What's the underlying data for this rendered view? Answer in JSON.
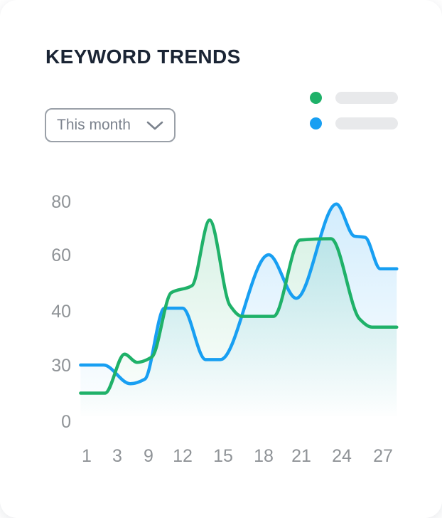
{
  "card": {
    "title": "KEYWORD TRENDS"
  },
  "filter": {
    "value": "This month",
    "icon": "chevron-down-icon"
  },
  "legend": {
    "position": "top-right",
    "items": [
      {
        "name": "series_1",
        "dot_color": "#1fb169",
        "label": ""
      },
      {
        "name": "series_2",
        "dot_color": "#189ff2",
        "label": ""
      }
    ]
  },
  "colors": {
    "title_text": "#1a2434",
    "axis_text": "#8f9397",
    "dropdown_border": "#9aa0a8",
    "dropdown_text": "#7b828d",
    "legend_placeholder": "#e8e9eb",
    "card_bg": "#ffffff",
    "green_series": "#1fb169",
    "blue_series": "#189ff2"
  },
  "chart_data": {
    "type": "area",
    "title": "KEYWORD TRENDS",
    "xlabel": "",
    "ylabel": "",
    "grid": false,
    "legend_position": "top-right",
    "x_ticks": [
      1,
      3,
      9,
      12,
      15,
      18,
      21,
      24,
      27
    ],
    "y_ticks": [
      0,
      30,
      40,
      60,
      80
    ],
    "series": [
      {
        "name": "series_1",
        "color": "#1fb169",
        "points": [
          [
            0.6,
            15
          ],
          [
            2.2,
            15
          ],
          [
            4.4,
            32
          ],
          [
            6.8,
            30.5
          ],
          [
            9.3,
            31.5
          ],
          [
            11,
            46.5
          ],
          [
            12.7,
            49
          ],
          [
            14,
            73
          ],
          [
            15.5,
            42
          ],
          [
            16.4,
            39
          ],
          [
            18.8,
            39
          ],
          [
            20.9,
            65.5
          ],
          [
            23.2,
            66
          ],
          [
            25.3,
            38.5
          ],
          [
            26.2,
            37
          ],
          [
            28,
            37
          ]
        ]
      },
      {
        "name": "series_2",
        "color": "#189ff2",
        "points": [
          [
            0.6,
            30
          ],
          [
            2.1,
            30
          ],
          [
            5.5,
            20
          ],
          [
            8.3,
            22.5
          ],
          [
            10.4,
            41
          ],
          [
            12,
            41
          ],
          [
            13.7,
            31
          ],
          [
            14.8,
            31
          ],
          [
            18.4,
            60
          ],
          [
            20.6,
            44.5
          ],
          [
            23.6,
            79
          ],
          [
            24.9,
            67
          ],
          [
            25.7,
            66.5
          ],
          [
            26.8,
            55
          ],
          [
            28,
            55
          ]
        ]
      }
    ]
  }
}
